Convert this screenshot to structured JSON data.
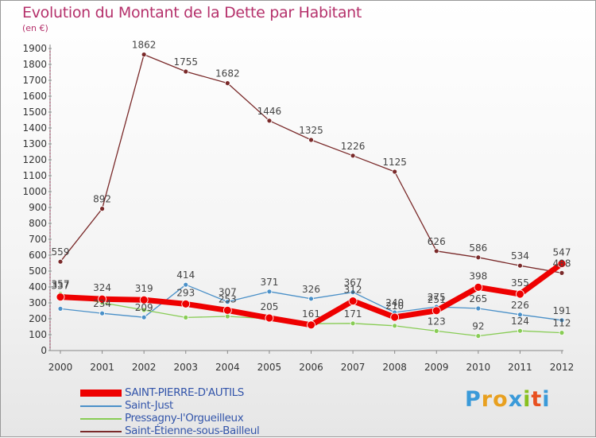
{
  "title": "Evolution du Montant de la Dette par Habitant",
  "unit": "(en €)",
  "logo": "Proxiti",
  "chart_data": {
    "type": "line",
    "x": [
      "2000",
      "2001",
      "2002",
      "2003",
      "2004",
      "2005",
      "2006",
      "2007",
      "2008",
      "2009",
      "2010",
      "2011",
      "2012"
    ],
    "yticks": [
      "0",
      "100",
      "200",
      "300",
      "400",
      "500",
      "600",
      "700",
      "800",
      "900",
      "1000",
      "1100",
      "1200",
      "1300",
      "1400",
      "1500",
      "1600",
      "1700",
      "1800",
      "1900"
    ],
    "ylim": [
      0,
      1950
    ],
    "grid": false,
    "legend_position": "bottom-left",
    "series": [
      {
        "name": "Saint-Étienne-sous-Bailleul",
        "color": "#7a2a2a",
        "values": [
          559,
          892,
          1862,
          1755,
          1682,
          1446,
          1325,
          1226,
          1125,
          626,
          586,
          534,
          488
        ],
        "labels": [
          "559",
          "892",
          "1862",
          "1755",
          "1682",
          "1446",
          "1325",
          "1226",
          "1125",
          "626",
          "586",
          "534",
          "488"
        ]
      },
      {
        "name": "Saint-Just",
        "color": "#4a90c8",
        "values": [
          263,
          234,
          209,
          414,
          307,
          371,
          326,
          367,
          240,
          275,
          265,
          226,
          191
        ],
        "labels": [
          "",
          "234",
          "209",
          "414",
          "307",
          "371",
          "326",
          "367",
          "240",
          "275",
          "265",
          "226",
          "191"
        ]
      },
      {
        "name": "Pressagny-l'Orgueilleux",
        "color": "#88cc55",
        "values": [
          357,
          301,
          255,
          208,
          215,
          200,
          169,
          171,
          156,
          123,
          92,
          124,
          112
        ],
        "labels": [
          "357",
          "",
          "",
          "",
          "",
          "",
          "",
          "171",
          "",
          "123",
          "92",
          "124",
          "112"
        ]
      },
      {
        "name": "SAINT-PIERRE-D'AUTILS",
        "color": "#ee0000",
        "values": [
          337,
          324,
          319,
          293,
          253,
          205,
          161,
          312,
          210,
          251,
          398,
          355,
          547
        ],
        "labels": [
          "337",
          "324",
          "319",
          "293",
          "253",
          "205",
          "161",
          "312",
          "210",
          "251",
          "398",
          "355",
          "547"
        ]
      }
    ],
    "legend": [
      {
        "name": "SAINT-PIERRE-D'AUTILS",
        "color": "#ee0000"
      },
      {
        "name": "Saint-Just",
        "color": "#4a90c8"
      },
      {
        "name": "Pressagny-l'Orgueilleux",
        "color": "#88cc55"
      },
      {
        "name": "Saint-Étienne-sous-Bailleul",
        "color": "#7a2a2a"
      }
    ]
  }
}
